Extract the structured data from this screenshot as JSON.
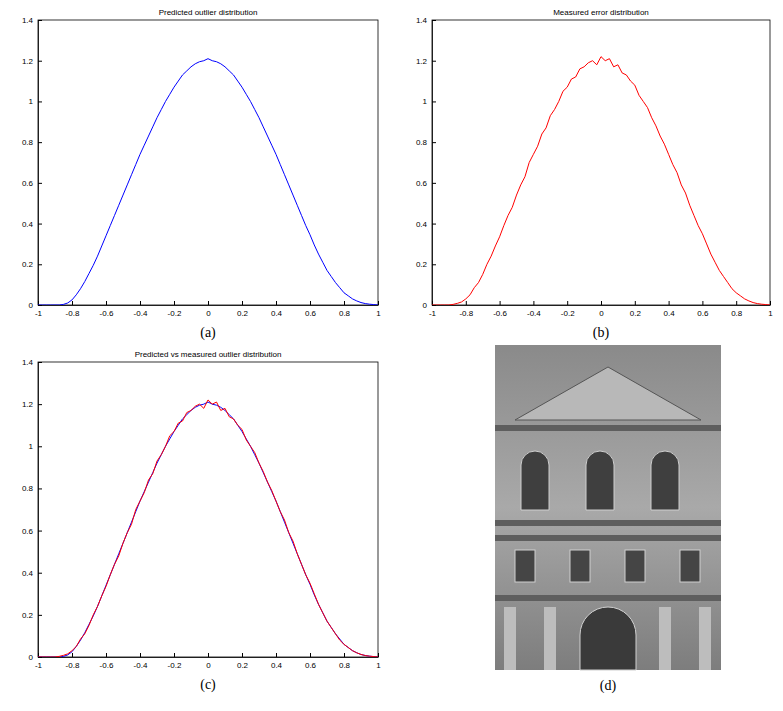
{
  "chart_data": [
    {
      "type": "line",
      "title": "Predicted outlier distribution",
      "caption": "(a)",
      "x": [
        -1,
        -0.975,
        -0.95,
        -0.925,
        -0.9,
        -0.875,
        -0.85,
        -0.825,
        -0.8,
        -0.775,
        -0.75,
        -0.725,
        -0.7,
        -0.675,
        -0.65,
        -0.625,
        -0.6,
        -0.575,
        -0.55,
        -0.525,
        -0.5,
        -0.475,
        -0.45,
        -0.425,
        -0.4,
        -0.375,
        -0.35,
        -0.325,
        -0.3,
        -0.275,
        -0.25,
        -0.225,
        -0.2,
        -0.175,
        -0.15,
        -0.125,
        -0.1,
        -0.075,
        -0.05,
        -0.025,
        0,
        0.025,
        0.05,
        0.075,
        0.1,
        0.125,
        0.15,
        0.175,
        0.2,
        0.225,
        0.25,
        0.275,
        0.3,
        0.325,
        0.35,
        0.375,
        0.4,
        0.425,
        0.45,
        0.475,
        0.5,
        0.525,
        0.55,
        0.575,
        0.6,
        0.625,
        0.65,
        0.675,
        0.7,
        0.725,
        0.75,
        0.775,
        0.8,
        0.825,
        0.85,
        0.875,
        0.9,
        0.925,
        0.95,
        0.975,
        1
      ],
      "series": [
        {
          "color": "#0000ff",
          "values": [
            0,
            0,
            0,
            0,
            0,
            0,
            0.003,
            0.01,
            0.025,
            0.05,
            0.08,
            0.115,
            0.155,
            0.195,
            0.24,
            0.29,
            0.34,
            0.39,
            0.44,
            0.49,
            0.54,
            0.59,
            0.64,
            0.69,
            0.74,
            0.785,
            0.83,
            0.875,
            0.92,
            0.96,
            1.0,
            1.035,
            1.07,
            1.1,
            1.13,
            1.15,
            1.17,
            1.185,
            1.195,
            1.2,
            1.21,
            1.2,
            1.195,
            1.185,
            1.17,
            1.15,
            1.13,
            1.1,
            1.07,
            1.035,
            1.0,
            0.96,
            0.92,
            0.875,
            0.83,
            0.785,
            0.74,
            0.69,
            0.64,
            0.59,
            0.54,
            0.49,
            0.44,
            0.39,
            0.345,
            0.295,
            0.25,
            0.21,
            0.17,
            0.14,
            0.11,
            0.085,
            0.06,
            0.045,
            0.03,
            0.02,
            0.012,
            0.007,
            0.004,
            0.002,
            0
          ]
        }
      ],
      "xlim": [
        -1,
        1
      ],
      "xticks": [
        -1,
        -0.8,
        -0.6,
        -0.4,
        -0.2,
        0,
        0.2,
        0.4,
        0.6,
        0.8,
        1
      ],
      "ylim": [
        0,
        1.4
      ],
      "yticks": [
        0,
        0.2,
        0.4,
        0.6,
        0.8,
        1,
        1.2,
        1.4
      ],
      "grid": false
    },
    {
      "type": "line",
      "title": "Measured error distribution",
      "caption": "(b)",
      "x": [
        -1,
        -0.975,
        -0.95,
        -0.925,
        -0.9,
        -0.875,
        -0.85,
        -0.825,
        -0.8,
        -0.775,
        -0.75,
        -0.725,
        -0.7,
        -0.675,
        -0.65,
        -0.625,
        -0.6,
        -0.575,
        -0.55,
        -0.525,
        -0.5,
        -0.475,
        -0.45,
        -0.425,
        -0.4,
        -0.375,
        -0.35,
        -0.325,
        -0.3,
        -0.275,
        -0.25,
        -0.225,
        -0.2,
        -0.175,
        -0.15,
        -0.125,
        -0.1,
        -0.075,
        -0.05,
        -0.025,
        0,
        0.025,
        0.05,
        0.075,
        0.1,
        0.125,
        0.15,
        0.175,
        0.2,
        0.225,
        0.25,
        0.275,
        0.3,
        0.325,
        0.35,
        0.375,
        0.4,
        0.425,
        0.45,
        0.475,
        0.5,
        0.525,
        0.55,
        0.575,
        0.6,
        0.625,
        0.65,
        0.675,
        0.7,
        0.725,
        0.75,
        0.775,
        0.8,
        0.825,
        0.85,
        0.875,
        0.9,
        0.925,
        0.95,
        0.975,
        1
      ],
      "series": [
        {
          "color": "#ff0000",
          "values": [
            0,
            0,
            0,
            0,
            0,
            0.003,
            0.008,
            0.015,
            0.03,
            0.05,
            0.085,
            0.11,
            0.15,
            0.2,
            0.24,
            0.29,
            0.335,
            0.39,
            0.44,
            0.48,
            0.54,
            0.59,
            0.63,
            0.7,
            0.74,
            0.78,
            0.84,
            0.87,
            0.93,
            0.96,
            1.0,
            1.05,
            1.07,
            1.11,
            1.12,
            1.16,
            1.17,
            1.19,
            1.2,
            1.18,
            1.22,
            1.2,
            1.21,
            1.17,
            1.18,
            1.14,
            1.13,
            1.1,
            1.08,
            1.03,
            1.0,
            0.97,
            0.92,
            0.88,
            0.83,
            0.79,
            0.74,
            0.69,
            0.65,
            0.59,
            0.55,
            0.49,
            0.44,
            0.39,
            0.35,
            0.3,
            0.25,
            0.21,
            0.17,
            0.14,
            0.11,
            0.08,
            0.06,
            0.045,
            0.03,
            0.02,
            0.012,
            0.007,
            0.004,
            0.002,
            0
          ]
        }
      ],
      "xlim": [
        -1,
        1
      ],
      "xticks": [
        -1,
        -0.8,
        -0.6,
        -0.4,
        -0.2,
        0,
        0.2,
        0.4,
        0.6,
        0.8,
        1
      ],
      "ylim": [
        0,
        1.4
      ],
      "yticks": [
        0,
        0.2,
        0.4,
        0.6,
        0.8,
        1,
        1.2,
        1.4
      ],
      "grid": false
    },
    {
      "type": "line",
      "title": "Predicted vs measured outlier distribution",
      "caption": "(c)",
      "x": [
        -1,
        -0.975,
        -0.95,
        -0.925,
        -0.9,
        -0.875,
        -0.85,
        -0.825,
        -0.8,
        -0.775,
        -0.75,
        -0.725,
        -0.7,
        -0.675,
        -0.65,
        -0.625,
        -0.6,
        -0.575,
        -0.55,
        -0.525,
        -0.5,
        -0.475,
        -0.45,
        -0.425,
        -0.4,
        -0.375,
        -0.35,
        -0.325,
        -0.3,
        -0.275,
        -0.25,
        -0.225,
        -0.2,
        -0.175,
        -0.15,
        -0.125,
        -0.1,
        -0.075,
        -0.05,
        -0.025,
        0,
        0.025,
        0.05,
        0.075,
        0.1,
        0.125,
        0.15,
        0.175,
        0.2,
        0.225,
        0.25,
        0.275,
        0.3,
        0.325,
        0.35,
        0.375,
        0.4,
        0.425,
        0.45,
        0.475,
        0.5,
        0.525,
        0.55,
        0.575,
        0.6,
        0.625,
        0.65,
        0.675,
        0.7,
        0.725,
        0.75,
        0.775,
        0.8,
        0.825,
        0.85,
        0.875,
        0.9,
        0.925,
        0.95,
        0.975,
        1
      ],
      "series": [
        {
          "color": "#0000ff",
          "values": [
            0,
            0,
            0,
            0,
            0,
            0,
            0.003,
            0.01,
            0.025,
            0.05,
            0.08,
            0.115,
            0.155,
            0.195,
            0.24,
            0.29,
            0.34,
            0.39,
            0.44,
            0.49,
            0.54,
            0.59,
            0.64,
            0.69,
            0.74,
            0.785,
            0.83,
            0.875,
            0.92,
            0.96,
            1.0,
            1.035,
            1.07,
            1.1,
            1.13,
            1.15,
            1.17,
            1.185,
            1.195,
            1.2,
            1.21,
            1.2,
            1.195,
            1.185,
            1.17,
            1.15,
            1.13,
            1.1,
            1.07,
            1.035,
            1.0,
            0.96,
            0.92,
            0.875,
            0.83,
            0.785,
            0.74,
            0.69,
            0.64,
            0.59,
            0.54,
            0.49,
            0.44,
            0.39,
            0.345,
            0.295,
            0.25,
            0.21,
            0.17,
            0.14,
            0.11,
            0.085,
            0.06,
            0.045,
            0.03,
            0.02,
            0.012,
            0.007,
            0.004,
            0.002,
            0
          ]
        },
        {
          "color": "#ff0000",
          "values": [
            0,
            0,
            0,
            0,
            0,
            0.003,
            0.008,
            0.015,
            0.03,
            0.05,
            0.085,
            0.11,
            0.15,
            0.2,
            0.24,
            0.29,
            0.335,
            0.39,
            0.44,
            0.48,
            0.54,
            0.59,
            0.63,
            0.7,
            0.74,
            0.78,
            0.84,
            0.87,
            0.93,
            0.96,
            1.0,
            1.05,
            1.07,
            1.11,
            1.12,
            1.16,
            1.17,
            1.19,
            1.2,
            1.18,
            1.22,
            1.2,
            1.21,
            1.17,
            1.18,
            1.14,
            1.13,
            1.1,
            1.08,
            1.03,
            1.0,
            0.97,
            0.92,
            0.88,
            0.83,
            0.79,
            0.74,
            0.69,
            0.65,
            0.59,
            0.55,
            0.49,
            0.44,
            0.39,
            0.35,
            0.3,
            0.25,
            0.21,
            0.17,
            0.14,
            0.11,
            0.08,
            0.06,
            0.045,
            0.03,
            0.02,
            0.012,
            0.007,
            0.004,
            0.002,
            0
          ]
        }
      ],
      "xlim": [
        -1,
        1
      ],
      "xticks": [
        -1,
        -0.8,
        -0.6,
        -0.4,
        -0.2,
        0,
        0.2,
        0.4,
        0.6,
        0.8,
        1
      ],
      "ylim": [
        0,
        1.4
      ],
      "yticks": [
        0,
        0.2,
        0.4,
        0.6,
        0.8,
        1,
        1.2,
        1.4
      ],
      "grid": false
    }
  ],
  "image": {
    "caption": "(d)"
  }
}
